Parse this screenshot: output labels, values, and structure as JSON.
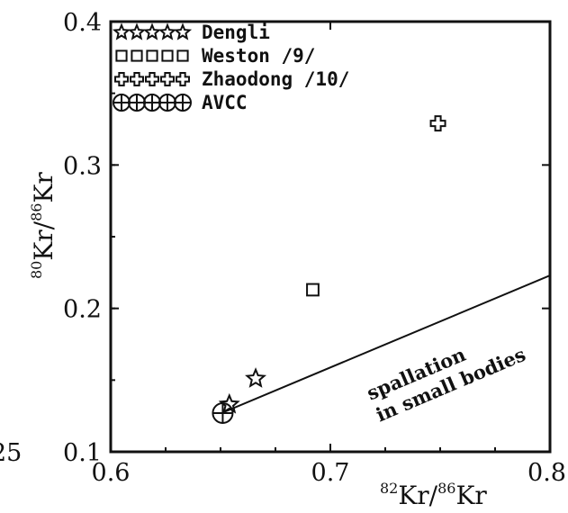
{
  "chart_data": {
    "type": "scatter",
    "xlabel": {
      "iso": "82",
      "mid": "Kr/",
      "iso2": "86",
      "tail": "Kr"
    },
    "ylabel": {
      "iso": "80",
      "mid": "Kr/",
      "iso2": "86",
      "tail": "Kr"
    },
    "xlim": [
      0.6,
      0.8
    ],
    "ylim": [
      0.1,
      0.4
    ],
    "xticks": [
      "0.6",
      "0.7",
      "0.8"
    ],
    "yticks": [
      "0.1",
      "0.2",
      "0.3",
      "0.4"
    ],
    "left_edge_fragment": "25",
    "grid": false,
    "legend_position": "top-left",
    "series": [
      {
        "name": "Dengli",
        "marker": "star",
        "points": [
          [
            0.666,
            0.151
          ],
          [
            0.654,
            0.133
          ]
        ]
      },
      {
        "name": "Weston  /9/",
        "marker": "square",
        "points": [
          [
            0.692,
            0.213
          ]
        ]
      },
      {
        "name": "Zhaodong  /10/",
        "marker": "cross",
        "points": [
          [
            0.749,
            0.329
          ]
        ]
      },
      {
        "name": "AVCC",
        "marker": "circle-cross",
        "points": [
          [
            0.651,
            0.127
          ]
        ]
      }
    ],
    "line": {
      "name": "spallation in small bodies",
      "points": [
        [
          0.652,
          0.128
        ],
        [
          0.8,
          0.223
        ]
      ]
    },
    "annotation": [
      "spallation",
      "in small bodies"
    ]
  }
}
